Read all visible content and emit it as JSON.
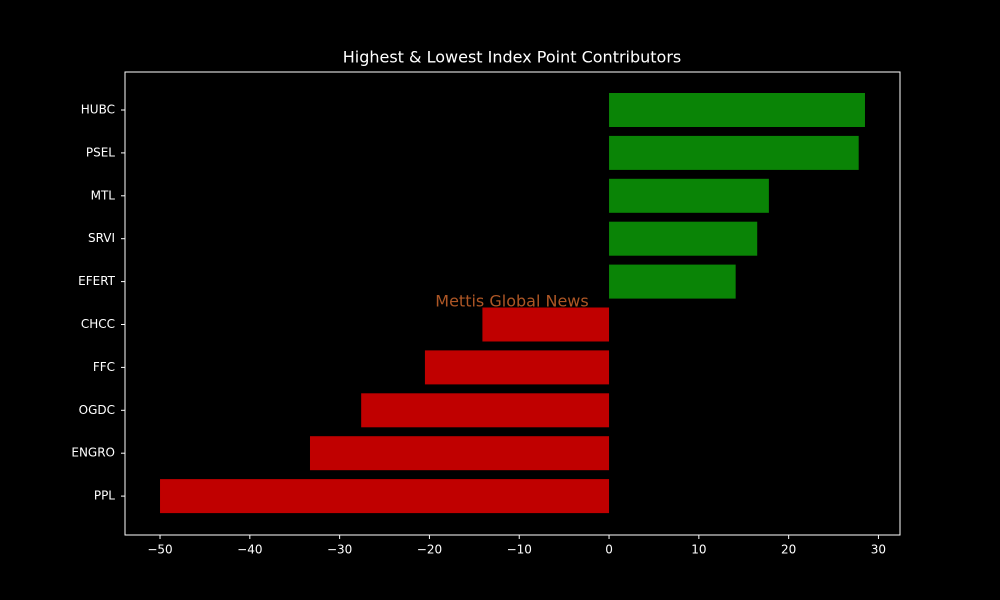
{
  "chart_data": {
    "type": "barh",
    "title": "Highest & Lowest Index Point Contributors",
    "watermark": "Mettis Global News",
    "categories": [
      "HUBC",
      "PSEL",
      "MTL",
      "SRVI",
      "EFERT",
      "CHCC",
      "FFC",
      "OGDC",
      "ENGRO",
      "PPL"
    ],
    "values": [
      28.5,
      27.8,
      17.8,
      16.5,
      14.1,
      -14.1,
      -20.5,
      -27.6,
      -33.3,
      -50.0
    ],
    "colors": [
      "#0a8406",
      "#0a8406",
      "#0a8406",
      "#0a8406",
      "#0a8406",
      "#c00000",
      "#c00000",
      "#c00000",
      "#c00000",
      "#c00000"
    ],
    "xlim": [
      -53.9,
      32.4
    ],
    "xticks": [
      {
        "value": -50,
        "label": "−50"
      },
      {
        "value": -40,
        "label": "−40"
      },
      {
        "value": -30,
        "label": "−30"
      },
      {
        "value": -20,
        "label": "−20"
      },
      {
        "value": -10,
        "label": "−10"
      },
      0,
      10,
      20,
      30
    ]
  }
}
